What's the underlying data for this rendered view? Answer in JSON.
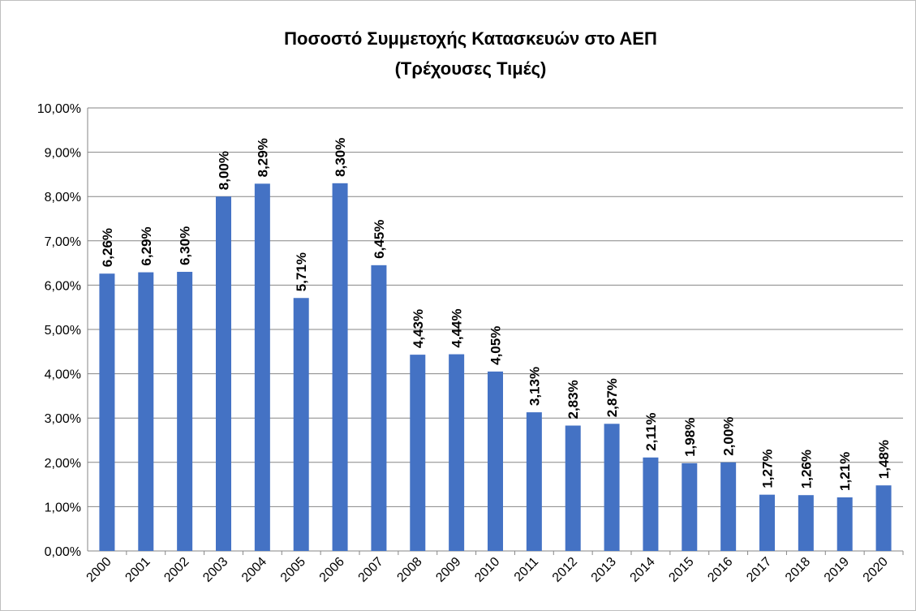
{
  "chart_data": {
    "type": "bar",
    "title": "Ποσοστό Συμμετοχής Κατασκευών στο ΑΕΠ",
    "subtitle": "(Τρέχουσες Τιμές)",
    "categories": [
      "2000",
      "2001",
      "2002",
      "2003",
      "2004",
      "2005",
      "2006",
      "2007",
      "2008",
      "2009",
      "2010",
      "2011",
      "2012",
      "2013",
      "2014",
      "2015",
      "2016",
      "2017",
      "2018",
      "2019",
      "2020"
    ],
    "values": [
      6.26,
      6.29,
      6.3,
      8.0,
      8.29,
      5.71,
      8.3,
      6.45,
      4.43,
      4.44,
      4.05,
      3.13,
      2.83,
      2.87,
      2.11,
      1.98,
      2.0,
      1.27,
      1.26,
      1.21,
      1.48
    ],
    "value_labels": [
      "6,26%",
      "6,29%",
      "6,30%",
      "8,00%",
      "8,29%",
      "5,71%",
      "8,30%",
      "6,45%",
      "4,43%",
      "4,44%",
      "4,05%",
      "3,13%",
      "2,83%",
      "2,87%",
      "2,11%",
      "1,98%",
      "2,00%",
      "1,27%",
      "1,26%",
      "1,21%",
      "1,48%"
    ],
    "color": "#4472c4",
    "ylim": [
      0,
      10
    ],
    "yticks": [
      {
        "value": 0,
        "label": "0,00%"
      },
      {
        "value": 1,
        "label": "1,00%"
      },
      {
        "value": 2,
        "label": "2,00%"
      },
      {
        "value": 3,
        "label": "3,00%"
      },
      {
        "value": 4,
        "label": "4,00%"
      },
      {
        "value": 5,
        "label": "5,00%"
      },
      {
        "value": 6,
        "label": "6,00%"
      },
      {
        "value": 7,
        "label": "7,00%"
      },
      {
        "value": 8,
        "label": "8,00%"
      },
      {
        "value": 9,
        "label": "9,00%"
      },
      {
        "value": 10,
        "label": "10,00%"
      }
    ],
    "grid": true
  }
}
